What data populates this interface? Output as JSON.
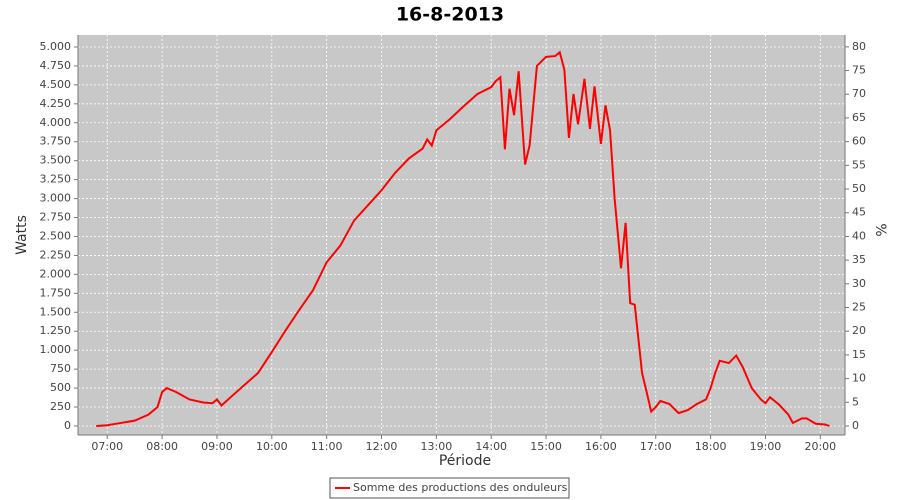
{
  "chart_data": {
    "type": "line",
    "title": "16-8-2013",
    "x_label": "Période",
    "y_label": "Watts",
    "y2_label": "%",
    "x": [
      "06:48",
      "07:00",
      "07:15",
      "07:30",
      "07:45",
      "07:55",
      "08:00",
      "08:05",
      "08:15",
      "08:30",
      "08:45",
      "08:55",
      "09:00",
      "09:05",
      "09:15",
      "09:30",
      "09:45",
      "10:00",
      "10:15",
      "10:30",
      "10:45",
      "11:00",
      "11:15",
      "11:30",
      "11:45",
      "12:00",
      "12:15",
      "12:30",
      "12:45",
      "12:50",
      "12:55",
      "13:00",
      "13:15",
      "13:30",
      "13:45",
      "14:00",
      "14:05",
      "14:10",
      "14:15",
      "14:20",
      "14:25",
      "14:30",
      "14:37",
      "14:42",
      "14:50",
      "15:00",
      "15:10",
      "15:15",
      "15:20",
      "15:25",
      "15:30",
      "15:35",
      "15:42",
      "15:48",
      "15:53",
      "16:00",
      "16:05",
      "16:10",
      "16:15",
      "16:22",
      "16:27",
      "16:32",
      "16:37",
      "16:45",
      "16:50",
      "16:55",
      "17:00",
      "17:05",
      "17:15",
      "17:25",
      "17:35",
      "17:45",
      "17:55",
      "18:00",
      "18:05",
      "18:10",
      "18:20",
      "18:28",
      "18:35",
      "18:45",
      "18:55",
      "19:00",
      "19:05",
      "19:15",
      "19:25",
      "19:30",
      "19:40",
      "19:45",
      "19:55",
      "20:05",
      "20:10"
    ],
    "series": [
      {
        "name": "Somme des productions des onduleurs",
        "color": "#ff0000",
        "values": [
          0,
          10,
          40,
          70,
          150,
          250,
          447,
          500,
          450,
          350,
          310,
          300,
          350,
          270,
          380,
          540,
          700,
          975,
          1260,
          1530,
          1790,
          2160,
          2380,
          2710,
          2910,
          3110,
          3340,
          3530,
          3660,
          3780,
          3700,
          3900,
          4050,
          4220,
          4380,
          4470,
          4550,
          4600,
          3650,
          4450,
          4100,
          4680,
          3450,
          3700,
          4750,
          4870,
          4880,
          4930,
          4700,
          3800,
          4380,
          3980,
          4580,
          3920,
          4480,
          3720,
          4230,
          3900,
          3000,
          2080,
          2680,
          1620,
          1600,
          700,
          450,
          190,
          250,
          330,
          290,
          170,
          210,
          290,
          350,
          500,
          700,
          860,
          830,
          930,
          780,
          500,
          350,
          300,
          380,
          280,
          150,
          40,
          100,
          100,
          30,
          20,
          0
        ]
      }
    ],
    "xlim": [
      "06:28",
      "20:27"
    ],
    "xticks": [
      "07:00",
      "08:00",
      "09:00",
      "10:00",
      "11:00",
      "12:00",
      "13:00",
      "14:00",
      "15:00",
      "16:00",
      "17:00",
      "18:00",
      "19:00",
      "20:00"
    ],
    "ylim": [
      -119,
      5158
    ],
    "yticks": [
      0,
      250,
      500,
      750,
      {
        "value": 1000,
        "label": "1.000"
      },
      {
        "value": 1250,
        "label": "1.250"
      },
      {
        "value": 1500,
        "label": "1.500"
      },
      {
        "value": 1750,
        "label": "1.750"
      },
      {
        "value": 2000,
        "label": "2.000"
      },
      {
        "value": 2250,
        "label": "2.250"
      },
      {
        "value": 2500,
        "label": "2.500"
      },
      {
        "value": 2750,
        "label": "2.750"
      },
      {
        "value": 3000,
        "label": "3.000"
      },
      {
        "value": 3250,
        "label": "3.250"
      },
      {
        "value": 3500,
        "label": "3.500"
      },
      {
        "value": 3750,
        "label": "3.750"
      },
      {
        "value": 4000,
        "label": "4.000"
      },
      {
        "value": 4250,
        "label": "4.250"
      },
      {
        "value": 4500,
        "label": "4.500"
      },
      {
        "value": 4750,
        "label": "4.750"
      },
      {
        "value": 5000,
        "label": "5.000"
      }
    ],
    "y2lim": [
      -1.9,
      82.5
    ],
    "y2ticks": [
      0,
      5,
      10,
      15,
      20,
      25,
      30,
      35,
      40,
      45,
      50,
      55,
      60,
      65,
      70,
      75,
      80
    ],
    "grid": true
  }
}
